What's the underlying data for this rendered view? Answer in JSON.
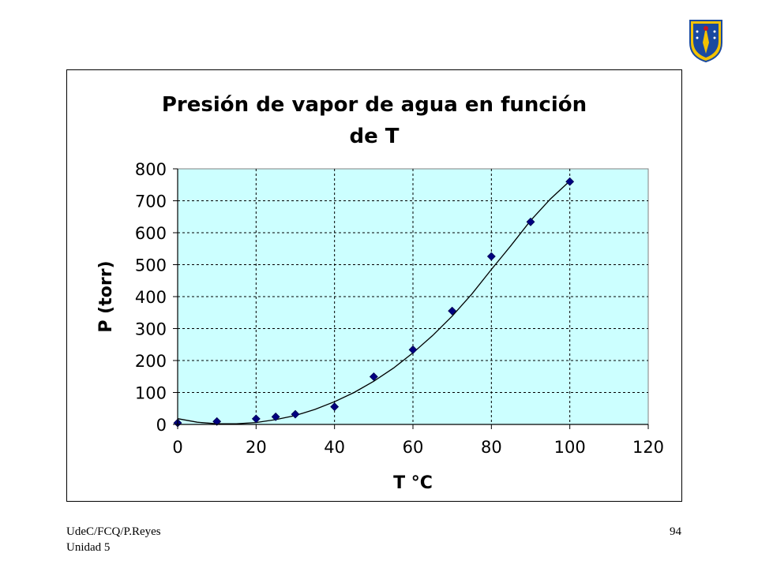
{
  "footer": {
    "line1": "UdeC/FCQ/P.Reyes",
    "line2": "Unidad 5",
    "page_number": "94"
  },
  "logo": {
    "icon": "university-crest-icon",
    "colors": [
      "#1a4aa0",
      "#f2c200",
      "#c8141e"
    ]
  },
  "colors": {
    "plot_area": "#ccffff",
    "marker": "#000080",
    "line": "#000000"
  },
  "chart_data": {
    "type": "scatter",
    "title_lines": [
      "Presión de vapor de agua en función",
      "de T"
    ],
    "xlabel": "T °C",
    "ylabel": "P (torr)",
    "xlim": [
      0,
      120
    ],
    "ylim": [
      0,
      800
    ],
    "x_ticks": [
      0,
      20,
      40,
      60,
      80,
      100,
      120
    ],
    "y_ticks": [
      0,
      100,
      200,
      300,
      400,
      500,
      600,
      700,
      800
    ],
    "grid": "dashed",
    "legend": "none",
    "series": [
      {
        "marker": "diamond",
        "x": [
          0,
          10,
          20,
          25,
          30,
          40,
          50,
          60,
          70,
          80,
          90,
          100
        ],
        "y": [
          4.6,
          9.2,
          17.5,
          23.8,
          31.8,
          55.3,
          149.4,
          233.7,
          355.1,
          525.8,
          633.9,
          760
        ]
      }
    ],
    "trendline": {
      "type": "polynomial",
      "x": [
        0,
        5,
        10,
        15,
        20,
        25,
        30,
        35,
        40,
        45,
        50,
        55,
        60,
        65,
        70,
        75,
        80,
        85,
        90,
        95,
        100
      ],
      "y": [
        18,
        7,
        2,
        2,
        6,
        15,
        28,
        47,
        71,
        100,
        135,
        176,
        224,
        278,
        339,
        408,
        485,
        560,
        638,
        705,
        762
      ]
    }
  }
}
